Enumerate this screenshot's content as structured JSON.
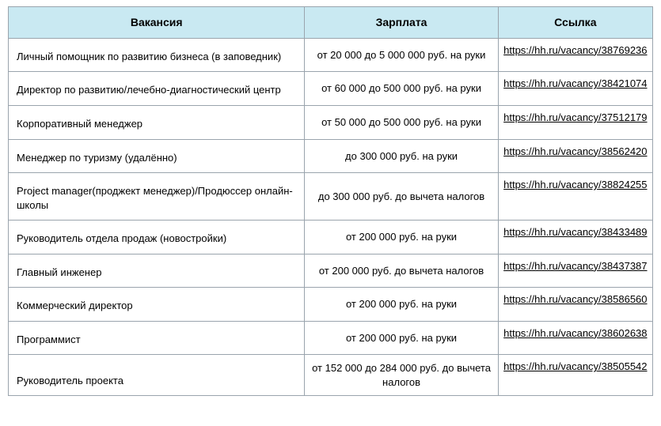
{
  "table": {
    "header": {
      "vacancy": "Вакансия",
      "salary": "Зарплата",
      "link": "Ссылка"
    },
    "rows": [
      {
        "vacancy": "Личный помощник по развитию бизнеса (в заповедник)",
        "salary": "от 20 000 до 5 000 000 руб. на руки",
        "link": "https://hh.ru/vacancy/38769236"
      },
      {
        "vacancy": "Директор по развитию/лечебно-диагности­ческий центр",
        "salary": "от 60 000 до 500 000 руб. на руки",
        "link": "https://hh.ru/vacancy/38421074"
      },
      {
        "vacancy": "Корпоративный менеджер",
        "salary": "от 50 000 до 500 000 руб. на руки",
        "link": "https://hh.ru/vacancy/37512179"
      },
      {
        "vacancy": "Менеджер по туризму (удалённо)",
        "salary": "до 300 000 руб. на руки",
        "link": "https://hh.ru/vacancy/38562420"
      },
      {
        "vacancy": "Project manager(проджект менеджер)/Про­дюссер онлайн-школы",
        "salary": "до 300 000 руб. до вычета налогов",
        "link": "https://hh.ru/vacancy/38824255"
      },
      {
        "vacancy": "Руководитель отдела продаж (новостройки)",
        "salary": "от 200 000 руб. на руки",
        "link": "https://hh.ru/vacancy/38433489"
      },
      {
        "vacancy": "Главный инженер",
        "salary": "от 200 000 руб. до вычета налогов",
        "link": "https://hh.ru/vacancy/38437387"
      },
      {
        "vacancy": "Коммерческий директор",
        "salary": "от 200 000 руб. на руки",
        "link": "https://hh.ru/vacancy/38586560"
      },
      {
        "vacancy": "Программист",
        "salary": "от 200 000 руб. на руки",
        "link": "https://hh.ru/vacancy/38602638"
      },
      {
        "vacancy": "Руководитель проекта",
        "salary": "от 152 000 до 284 000 руб. до вы­чета налогов",
        "link": "https://hh.ru/vacancy/38505542"
      }
    ]
  }
}
